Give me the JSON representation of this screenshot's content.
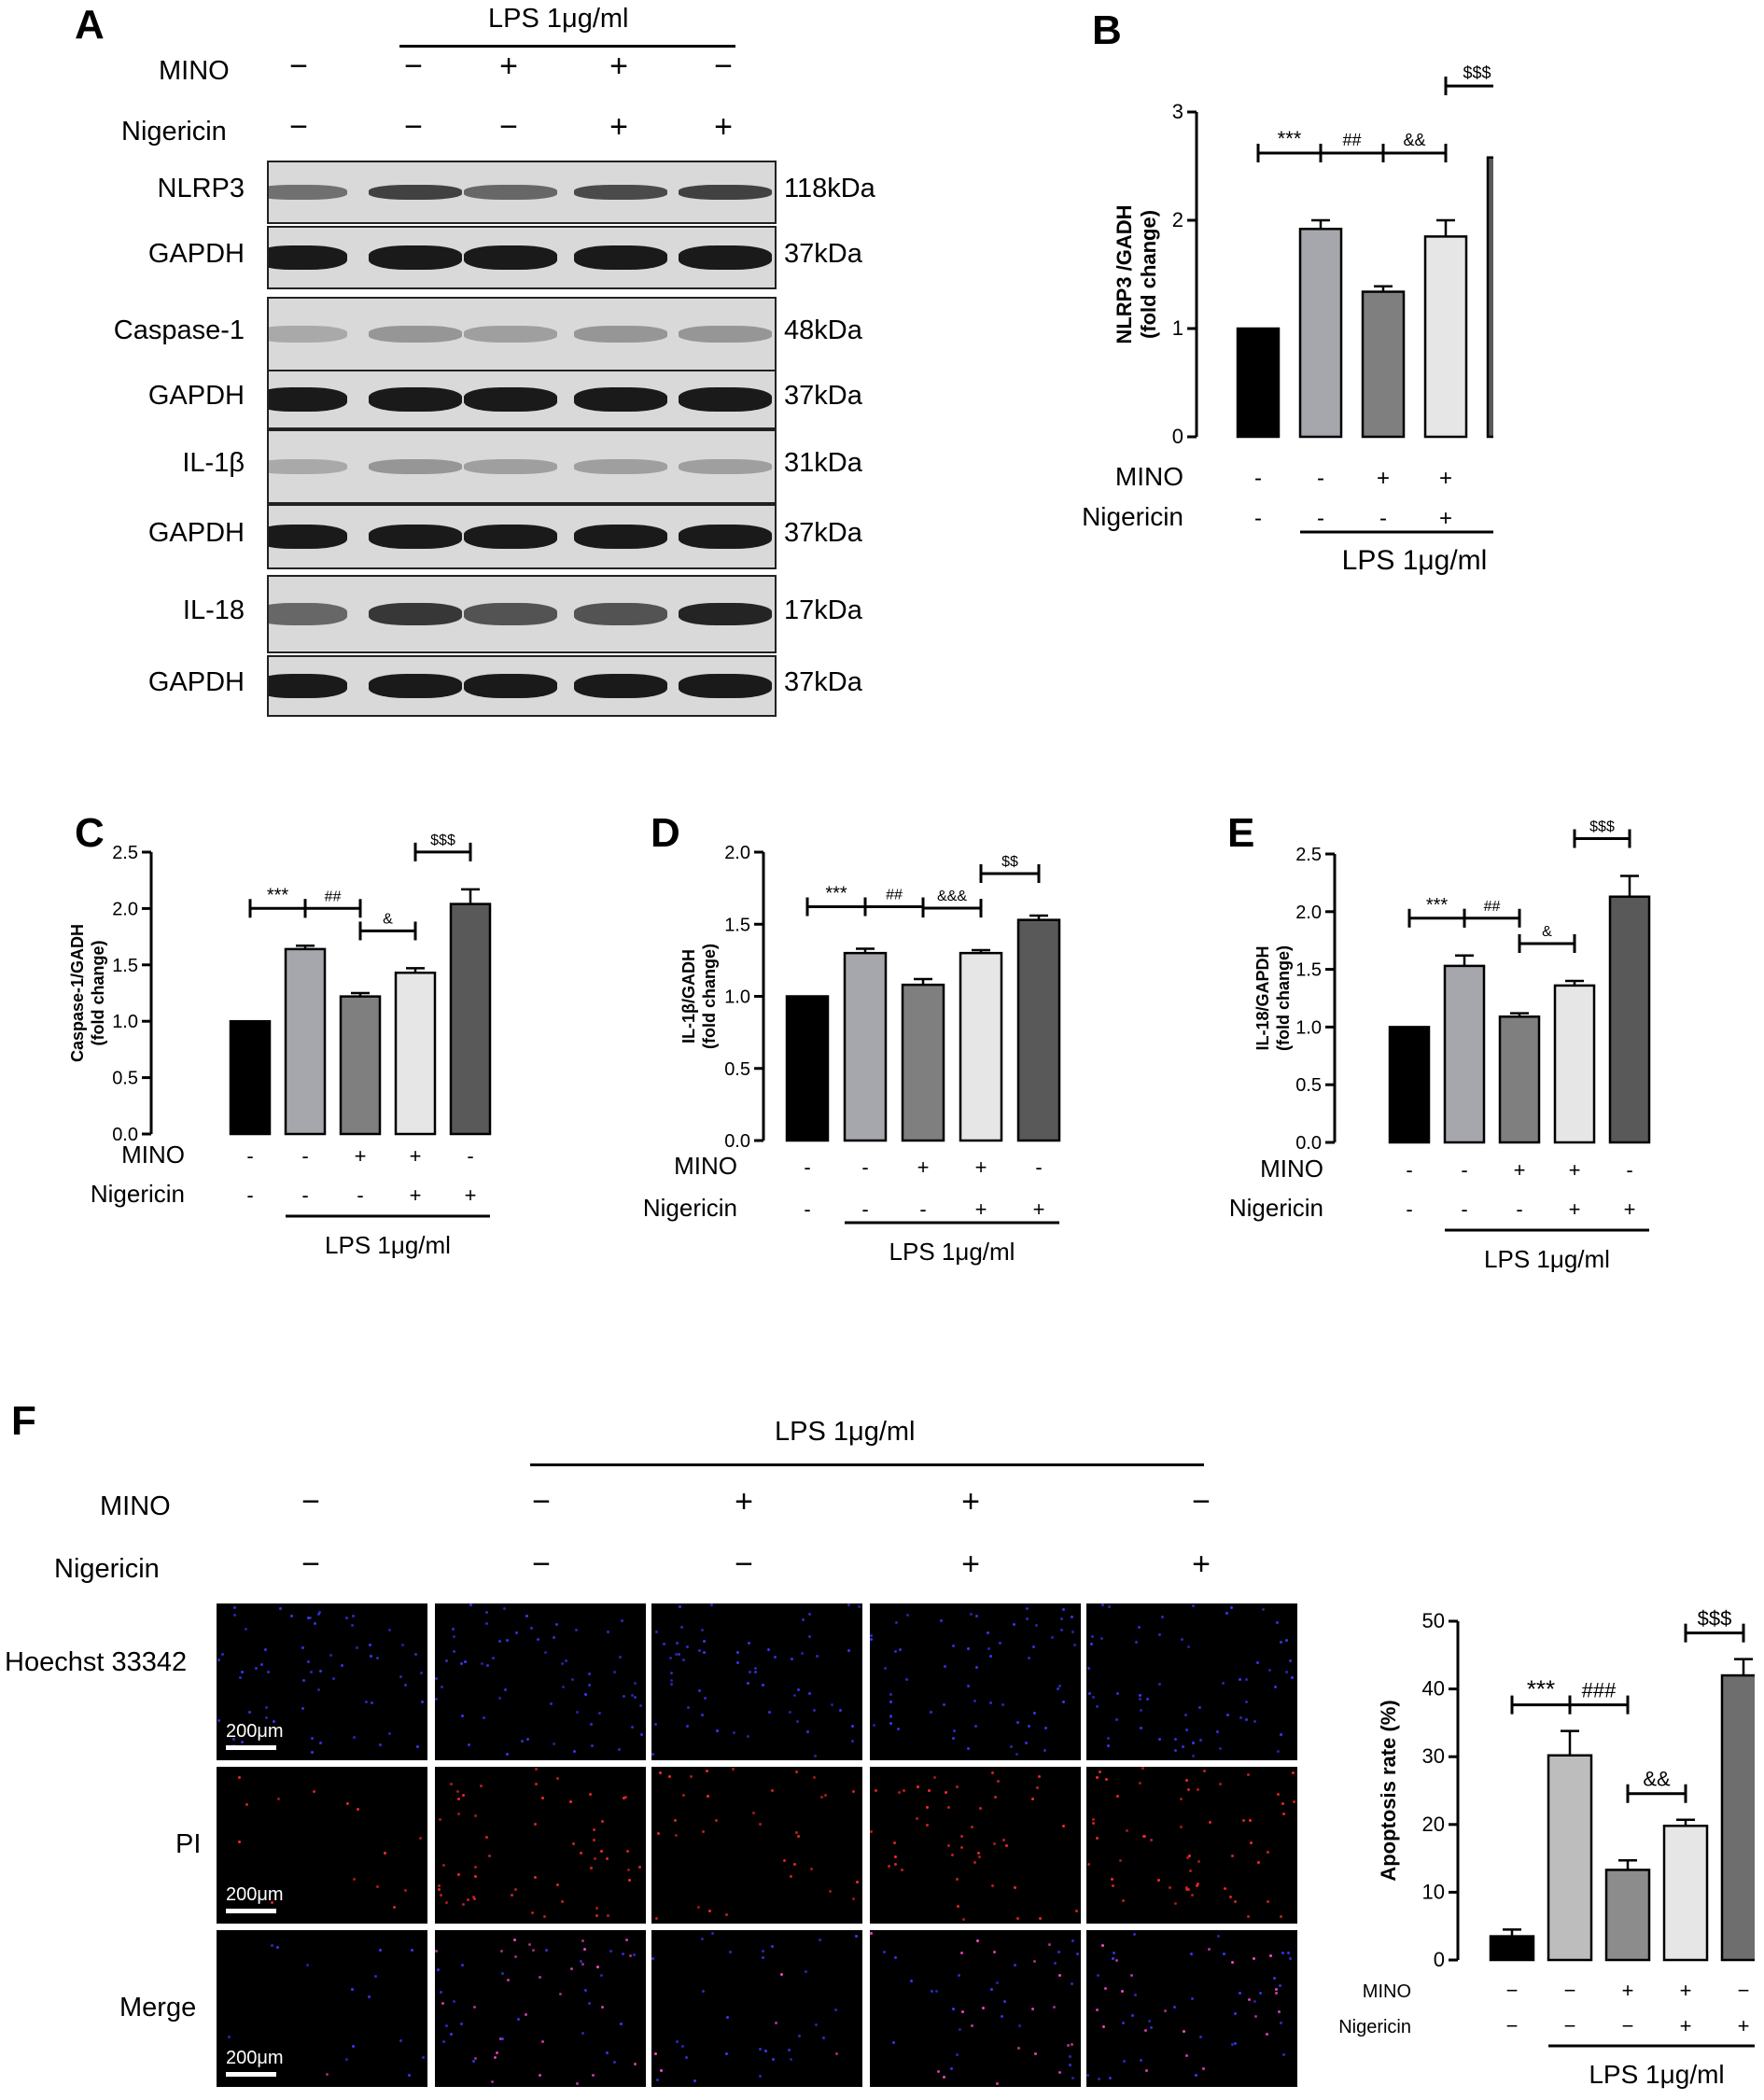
{
  "panel_a": {
    "letter": "A",
    "lps_header": "LPS 1μg/ml",
    "rows": [
      {
        "label": "MINO",
        "signs": [
          "−",
          "−",
          "+",
          "+",
          "−"
        ]
      },
      {
        "label": "Nigericin",
        "signs": [
          "−",
          "−",
          "−",
          "+",
          "+"
        ]
      }
    ],
    "blots": [
      {
        "label": "NLRP3",
        "kda": "118kDa"
      },
      {
        "label": "GAPDH",
        "kda": "37kDa"
      },
      {
        "label": "Caspase-1",
        "kda": "48kDa"
      },
      {
        "label": "GAPDH",
        "kda": "37kDa"
      },
      {
        "label": "IL-1β",
        "kda": "31kDa"
      },
      {
        "label": "GAPDH",
        "kda": "37kDa"
      },
      {
        "label": "IL-18",
        "kda": "17kDa"
      },
      {
        "label": "GAPDH",
        "kda": "37kDa"
      }
    ]
  },
  "panel_f": {
    "letter": "F",
    "lps_header": "LPS 1μg/ml",
    "rows": [
      {
        "label": "MINO",
        "signs": [
          "−",
          "−",
          "+",
          "+",
          "−"
        ]
      },
      {
        "label": "Nigericin",
        "signs": [
          "−",
          "−",
          "−",
          "+",
          "+"
        ]
      }
    ],
    "channels": [
      {
        "label": "Hoechst 33342",
        "color": "#3a3aff"
      },
      {
        "label": "PI",
        "color": "#ff2a2a"
      },
      {
        "label": "Merge",
        "color": "#c04aff"
      }
    ],
    "scale_label": "200μm"
  },
  "chart_data": [
    {
      "panel": "B",
      "type": "bar",
      "ylabel": "NLRP3 /GADH\n(fold change)",
      "ylim": [
        0,
        3
      ],
      "yticks": [
        "0",
        "1",
        "2",
        "3"
      ],
      "values": [
        1.0,
        1.92,
        1.34,
        1.85,
        2.58
      ],
      "errors": [
        0,
        0.08,
        0.05,
        0.15,
        0.04
      ],
      "colors": [
        "#000000",
        "#a6a6ad",
        "#7f7f7f",
        "#e6e6e6",
        "#595959"
      ],
      "mino": [
        "-",
        "-",
        "+",
        "+",
        "-"
      ],
      "nigericin": [
        "-",
        "-",
        "-",
        "+",
        "+"
      ],
      "lps_label": "LPS 1μg/ml",
      "brackets": [
        {
          "from": 0,
          "to": 1,
          "text": "***"
        },
        {
          "from": 1,
          "to": 2,
          "text": "##"
        },
        {
          "from": 2,
          "to": 3,
          "text": "&&"
        },
        {
          "from": 3,
          "to": 4,
          "text": "$$$"
        }
      ]
    },
    {
      "panel": "C",
      "type": "bar",
      "ylabel": "Caspase-1/GADH\n(fold change)",
      "ylim": [
        0,
        2.5
      ],
      "yticks": [
        "0.0",
        "0.5",
        "1.0",
        "1.5",
        "2.0",
        "2.5"
      ],
      "values": [
        1.0,
        1.64,
        1.22,
        1.43,
        2.04
      ],
      "errors": [
        0,
        0.03,
        0.03,
        0.04,
        0.13
      ],
      "colors": [
        "#000000",
        "#a6a6ad",
        "#7f7f7f",
        "#e6e6e6",
        "#595959"
      ],
      "mino": [
        "-",
        "-",
        "+",
        "+",
        "-"
      ],
      "nigericin": [
        "-",
        "-",
        "-",
        "+",
        "+"
      ],
      "lps_label": "LPS 1μg/ml",
      "brackets": [
        {
          "from": 0,
          "to": 1,
          "text": "***"
        },
        {
          "from": 1,
          "to": 2,
          "text": "##"
        },
        {
          "from": 2,
          "to": 3,
          "text": "&"
        },
        {
          "from": 3,
          "to": 4,
          "text": "$$$"
        }
      ]
    },
    {
      "panel": "D",
      "type": "bar",
      "ylabel": "IL-1β/GADH\n(fold change)",
      "ylim": [
        0,
        2.0
      ],
      "yticks": [
        "0.0",
        "0.5",
        "1.0",
        "1.5",
        "2.0"
      ],
      "values": [
        1.0,
        1.3,
        1.08,
        1.3,
        1.53
      ],
      "errors": [
        0,
        0.03,
        0.04,
        0.02,
        0.03
      ],
      "colors": [
        "#000000",
        "#a6a6ad",
        "#7f7f7f",
        "#e6e6e6",
        "#595959"
      ],
      "mino": [
        "-",
        "-",
        "+",
        "+",
        "-"
      ],
      "nigericin": [
        "-",
        "-",
        "-",
        "+",
        "+"
      ],
      "lps_label": "LPS 1μg/ml",
      "brackets": [
        {
          "from": 0,
          "to": 1,
          "text": "***"
        },
        {
          "from": 1,
          "to": 2,
          "text": "##"
        },
        {
          "from": 2,
          "to": 3,
          "text": "&&&"
        },
        {
          "from": 3,
          "to": 4,
          "text": "$$"
        }
      ]
    },
    {
      "panel": "E",
      "type": "bar",
      "ylabel": "IL-18/GAPDH\n(fold change)",
      "ylim": [
        0,
        2.5
      ],
      "yticks": [
        "0.0",
        "0.5",
        "1.0",
        "1.5",
        "2.0",
        "2.5"
      ],
      "values": [
        1.0,
        1.53,
        1.09,
        1.36,
        2.13
      ],
      "errors": [
        0,
        0.09,
        0.03,
        0.04,
        0.18
      ],
      "colors": [
        "#000000",
        "#a6a6ad",
        "#7f7f7f",
        "#e6e6e6",
        "#595959"
      ],
      "mino": [
        "-",
        "-",
        "+",
        "+",
        "-"
      ],
      "nigericin": [
        "-",
        "-",
        "-",
        "+",
        "+"
      ],
      "lps_label": "LPS 1μg/ml",
      "brackets": [
        {
          "from": 0,
          "to": 1,
          "text": "***"
        },
        {
          "from": 1,
          "to": 2,
          "text": "##"
        },
        {
          "from": 2,
          "to": 3,
          "text": "&"
        },
        {
          "from": 3,
          "to": 4,
          "text": "$$$"
        }
      ]
    },
    {
      "panel": "F",
      "type": "bar",
      "ylabel": "Apoptosis rate (%)",
      "ylim": [
        0,
        50
      ],
      "yticks": [
        "0",
        "10",
        "20",
        "30",
        "40",
        "50"
      ],
      "values": [
        3.5,
        30.2,
        13.3,
        19.8,
        42.0
      ],
      "errors": [
        1.0,
        3.6,
        1.4,
        0.9,
        2.4
      ],
      "colors": [
        "#000000",
        "#bdbdbd",
        "#8c8c8c",
        "#e6e6e6",
        "#6e6e6e"
      ],
      "mino": [
        "−",
        "−",
        "+",
        "+",
        "−"
      ],
      "nigericin": [
        "−",
        "−",
        "−",
        "+",
        "+"
      ],
      "lps_label": "LPS 1μg/ml",
      "brackets": [
        {
          "from": 0,
          "to": 1,
          "text": "***"
        },
        {
          "from": 1,
          "to": 2,
          "text": "###"
        },
        {
          "from": 2,
          "to": 3,
          "text": "&&"
        },
        {
          "from": 3,
          "to": 4,
          "text": "$$$"
        }
      ]
    }
  ]
}
